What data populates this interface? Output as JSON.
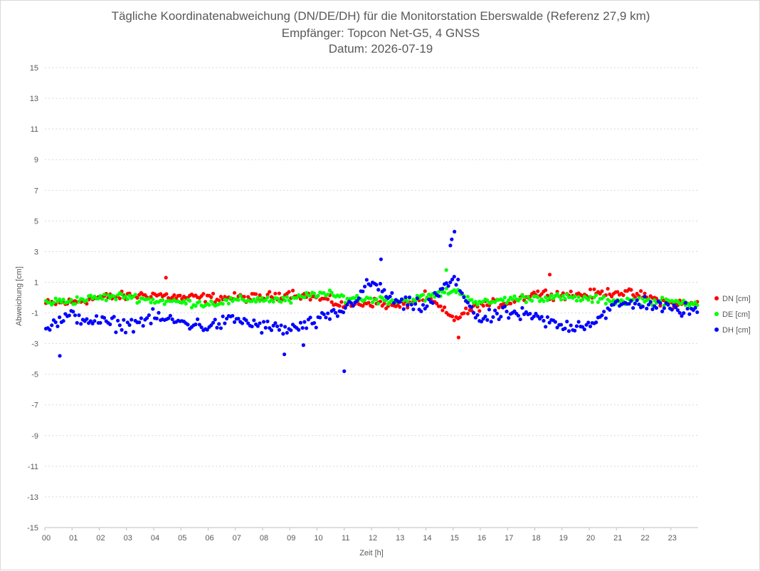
{
  "chart_data": {
    "type": "scatter",
    "title": "Tägliche Koordinatenabweichung (DN/DE/DH) für die Monitorstation Eberswalde (Referenz 27,9 km)",
    "subtitle1": "Empfänger: Topcon Net-G5, 4 GNSS",
    "subtitle2": "Datum: 2026-07-19",
    "xlabel": "Zeit [h]",
    "ylabel": "Abweichung [cm]",
    "xlim": [
      0,
      24
    ],
    "ylim": [
      -15,
      15
    ],
    "x_ticks": [
      "00",
      "01",
      "02",
      "03",
      "04",
      "05",
      "06",
      "07",
      "08",
      "09",
      "10",
      "11",
      "12",
      "13",
      "14",
      "15",
      "16",
      "17",
      "18",
      "19",
      "20",
      "21",
      "22",
      "23"
    ],
    "y_ticks": [
      "15",
      "13",
      "11",
      "9",
      "7",
      "5",
      "3",
      "1",
      "-1",
      "-3",
      "-5",
      "-7",
      "-9",
      "-11",
      "-13",
      "-15"
    ],
    "grid": "horizontal dotted",
    "legend_position": "right",
    "series": [
      {
        "name": "DN [cm]",
        "color": "#ff0000",
        "hourly_mean": [
          -0.4,
          -0.3,
          0.0,
          0.1,
          0.2,
          0.0,
          0.0,
          0.0,
          0.0,
          0.3,
          0.0,
          -0.5,
          -0.3,
          -0.6,
          0.1,
          -1.4,
          -0.5,
          -0.3,
          0.3,
          0.2,
          0.2,
          0.4,
          0.1,
          -0.4
        ],
        "spread": 0.45
      },
      {
        "name": "DE [cm]",
        "color": "#00ff00",
        "hourly_mean": [
          -0.3,
          -0.2,
          0.0,
          0.1,
          -0.2,
          -0.3,
          -0.4,
          -0.2,
          -0.1,
          -0.2,
          0.3,
          0.0,
          -0.1,
          -0.2,
          0.0,
          0.5,
          -0.4,
          -0.1,
          0.0,
          0.0,
          -0.1,
          -0.2,
          -0.2,
          -0.3
        ],
        "spread": 0.4
      },
      {
        "name": "DH [cm]",
        "color": "#0000ff",
        "hourly_mean": [
          -2.0,
          -1.2,
          -1.6,
          -1.8,
          -1.3,
          -1.6,
          -1.9,
          -1.4,
          -1.9,
          -2.1,
          -1.6,
          -0.8,
          1.0,
          -0.4,
          -0.6,
          1.2,
          -1.5,
          -1.0,
          -1.3,
          -1.9,
          -1.7,
          -0.5,
          -0.3,
          -0.8
        ],
        "spread": 0.7
      }
    ],
    "notable_points": [
      {
        "series": "DH [cm]",
        "x": 0.55,
        "y": -3.8
      },
      {
        "series": "DH [cm]",
        "x": 8.8,
        "y": -3.7
      },
      {
        "series": "DH [cm]",
        "x": 9.5,
        "y": -3.1
      },
      {
        "series": "DH [cm]",
        "x": 11.0,
        "y": -4.8
      },
      {
        "series": "DH [cm]",
        "x": 12.35,
        "y": 2.5
      },
      {
        "series": "DH [cm]",
        "x": 15.05,
        "y": 4.3
      },
      {
        "series": "DH [cm]",
        "x": 14.95,
        "y": 3.8
      },
      {
        "series": "DH [cm]",
        "x": 14.9,
        "y": 3.4
      },
      {
        "series": "DN [cm]",
        "x": 4.45,
        "y": 1.3
      },
      {
        "series": "DN [cm]",
        "x": 18.55,
        "y": 1.5
      },
      {
        "series": "DN [cm]",
        "x": 15.2,
        "y": -2.6
      },
      {
        "series": "DE [cm]",
        "x": 14.75,
        "y": 1.8
      }
    ]
  }
}
